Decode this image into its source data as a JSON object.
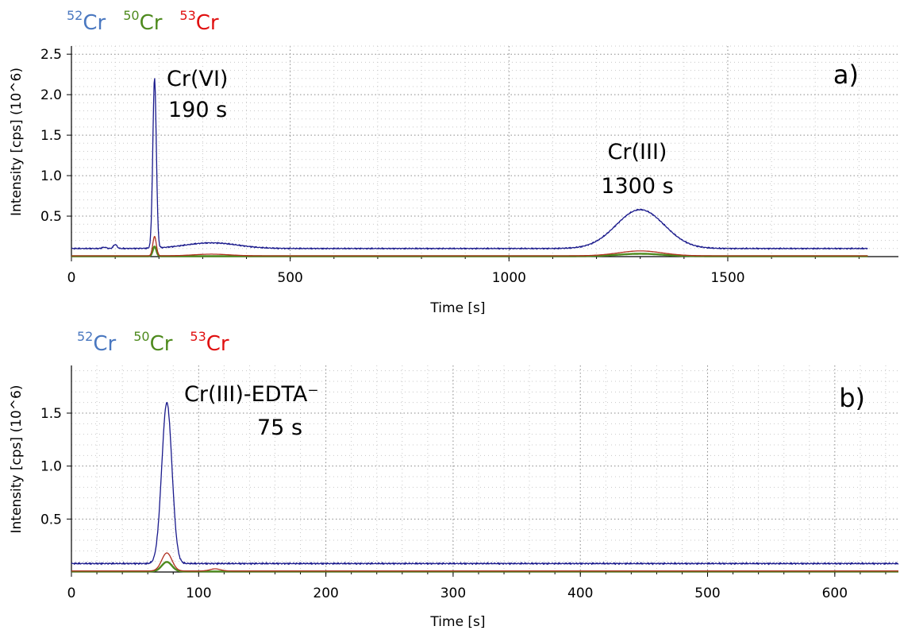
{
  "colors": {
    "cr52": "#2f5fb3",
    "cr50": "#4e8a1e",
    "cr53": "#e01010",
    "trace52": "#1a1a8c",
    "trace53": "#b03020",
    "trace50": "#2d5a18"
  },
  "legend": [
    {
      "mass": "52",
      "element": "Cr",
      "color": "#4a78c0"
    },
    {
      "mass": "50",
      "element": "Cr",
      "color": "#4e8a1e"
    },
    {
      "mass": "53",
      "element": "Cr",
      "color": "#e01010"
    }
  ],
  "chart_data": [
    {
      "type": "line",
      "panel_label": "a)",
      "xlabel": "Time [s]",
      "ylabel": "Intensity [cps] (10^6)",
      "xlim": [
        0,
        1890
      ],
      "ylim": [
        0,
        2.6
      ],
      "xticks": [
        "0",
        "500",
        "1000",
        "1500"
      ],
      "xtick_values": [
        0,
        500,
        1000,
        1500
      ],
      "yticks": [
        "0.5",
        "1.0",
        "1.5",
        "2.0",
        "2.5"
      ],
      "ytick_values": [
        0.5,
        1.0,
        1.5,
        2.0,
        2.5
      ],
      "grid": true,
      "annotations": [
        {
          "line1": "Cr(VI)",
          "line2": "190 s",
          "x": 190,
          "y": 2.2
        },
        {
          "line1": "Cr(III)",
          "line2": "1300 s",
          "x": 1300,
          "y": 0.58
        }
      ],
      "series": [
        {
          "isotope": "52Cr",
          "baseline": 0.1,
          "x_end": 1820,
          "peaks": [
            {
              "center": 75,
              "height": 0.015,
              "width": 5
            },
            {
              "center": 100,
              "height": 0.05,
              "width": 4
            },
            {
              "center": 190,
              "height": 2.1,
              "width": 4
            },
            {
              "center": 320,
              "height": 0.07,
              "width": 60
            },
            {
              "center": 1300,
              "height": 0.48,
              "width": 55
            }
          ]
        },
        {
          "isotope": "53Cr",
          "baseline": 0.01,
          "x_end": 1820,
          "peaks": [
            {
              "center": 190,
              "height": 0.24,
              "width": 4
            },
            {
              "center": 320,
              "height": 0.02,
              "width": 40
            },
            {
              "center": 1300,
              "height": 0.06,
              "width": 50
            }
          ]
        },
        {
          "isotope": "50Cr",
          "baseline": 0.005,
          "x_end": 1820,
          "peaks": [
            {
              "center": 190,
              "height": 0.12,
              "width": 4
            },
            {
              "center": 1300,
              "height": 0.03,
              "width": 50
            }
          ]
        }
      ]
    },
    {
      "type": "line",
      "panel_label": "b)",
      "xlabel": "Time [s]",
      "ylabel": "Intensity [cps] (10^6)",
      "xlim": [
        0,
        650
      ],
      "ylim": [
        0,
        1.95
      ],
      "xticks": [
        "0",
        "100",
        "200",
        "300",
        "400",
        "500",
        "600"
      ],
      "xtick_values": [
        0,
        100,
        200,
        300,
        400,
        500,
        600
      ],
      "yticks": [
        "0.5",
        "1.0",
        "1.5"
      ],
      "ytick_values": [
        0.5,
        1.0,
        1.5
      ],
      "grid": true,
      "annotations": [
        {
          "line1": "Cr(III)-EDTA⁻",
          "line2": "75 s",
          "x": 75,
          "y": 1.6
        }
      ],
      "series": [
        {
          "isotope": "52Cr",
          "baseline": 0.08,
          "x_end": 650,
          "peaks": [
            {
              "center": 75,
              "height": 1.52,
              "width": 4
            }
          ]
        },
        {
          "isotope": "53Cr",
          "baseline": 0.01,
          "x_end": 650,
          "peaks": [
            {
              "center": 75,
              "height": 0.17,
              "width": 4
            },
            {
              "center": 113,
              "height": 0.02,
              "width": 4
            }
          ]
        },
        {
          "isotope": "50Cr",
          "baseline": 0.005,
          "x_end": 650,
          "peaks": [
            {
              "center": 75,
              "height": 0.09,
              "width": 4
            }
          ]
        }
      ]
    }
  ]
}
